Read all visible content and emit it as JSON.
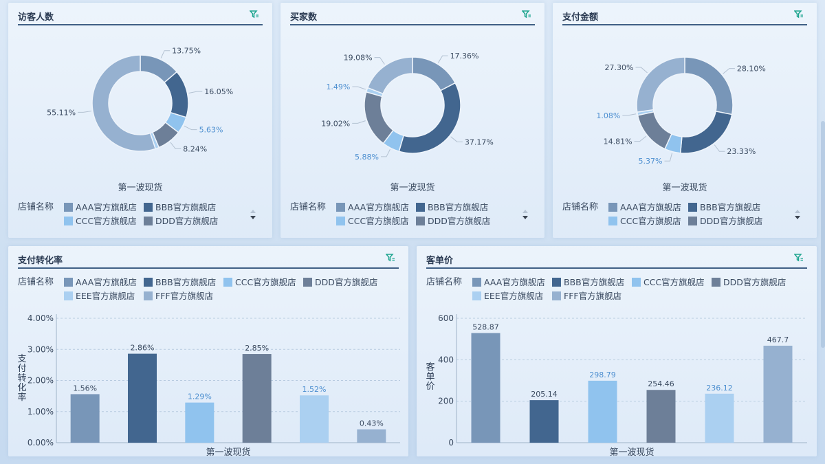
{
  "panels": {
    "visitors": {
      "title": "访客人数"
    },
    "buyers": {
      "title": "买家数"
    },
    "payment": {
      "title": "支付金额"
    },
    "conversion": {
      "title": "支付转化率"
    },
    "unit_price": {
      "title": "客单价"
    }
  },
  "legend_title": "店铺名称",
  "colors": {
    "AAA官方旗舰店": "#7896b8",
    "BBB官方旗舰店": "#42668f",
    "CCC官方旗舰店": "#90c3ee",
    "DDD官方旗舰店": "#6d7f98",
    "EEE官方旗舰店": "#abd0f1",
    "FFF官方旗舰店": "#96b1d0"
  },
  "chart_data": [
    {
      "type": "pie",
      "panel": "visitors",
      "category_label": "第一波现货",
      "labels": [
        "AAA官方旗舰店",
        "BBB官方旗舰店",
        "CCC官方旗舰店",
        "DDD官方旗舰店",
        "EEE官方旗舰店",
        "FFF官方旗舰店"
      ],
      "values": [
        13.75,
        16.05,
        5.63,
        8.24,
        1.22,
        55.11
      ],
      "value_labels": [
        "13.75%",
        "16.05%",
        "5.63%",
        "8.24%",
        "",
        "55.11%"
      ],
      "legend": [
        "AAA官方旗舰店",
        "BBB官方旗舰店",
        "CCC官方旗舰店",
        "DDD官方旗舰店"
      ]
    },
    {
      "type": "pie",
      "panel": "buyers",
      "category_label": "第一波现货",
      "labels": [
        "AAA官方旗舰店",
        "BBB官方旗舰店",
        "CCC官方旗舰店",
        "DDD官方旗舰店",
        "EEE官方旗舰店",
        "FFF官方旗舰店"
      ],
      "values": [
        17.36,
        37.17,
        5.88,
        19.02,
        1.49,
        19.08
      ],
      "value_labels": [
        "17.36%",
        "37.17%",
        "5.88%",
        "19.02%",
        "1.49%",
        "19.08%"
      ],
      "legend": [
        "AAA官方旗舰店",
        "BBB官方旗舰店",
        "CCC官方旗舰店",
        "DDD官方旗舰店"
      ]
    },
    {
      "type": "pie",
      "panel": "payment",
      "category_label": "第一波现货",
      "labels": [
        "AAA官方旗舰店",
        "BBB官方旗舰店",
        "CCC官方旗舰店",
        "DDD官方旗舰店",
        "EEE官方旗舰店",
        "FFF官方旗舰店"
      ],
      "values": [
        28.1,
        23.33,
        5.37,
        14.81,
        1.08,
        27.3
      ],
      "value_labels": [
        "28.10%",
        "23.33%",
        "5.37%",
        "14.81%",
        "1.08%",
        "27.30%"
      ],
      "legend": [
        "AAA官方旗舰店",
        "BBB官方旗舰店",
        "CCC官方旗舰店",
        "DDD官方旗舰店"
      ]
    },
    {
      "type": "bar",
      "panel": "conversion",
      "category_label": "第一波现货",
      "ylabel": "支付转化率",
      "yticks": [
        "0.00%",
        "1.00%",
        "2.00%",
        "3.00%",
        "4.00%"
      ],
      "ylim": [
        0,
        4
      ],
      "series": [
        {
          "name": "AAA官方旗舰店",
          "value": 1.56,
          "label": "1.56%"
        },
        {
          "name": "BBB官方旗舰店",
          "value": 2.86,
          "label": "2.86%"
        },
        {
          "name": "CCC官方旗舰店",
          "value": 1.29,
          "label": "1.29%"
        },
        {
          "name": "DDD官方旗舰店",
          "value": 2.85,
          "label": "2.85%"
        },
        {
          "name": "EEE官方旗舰店",
          "value": 1.52,
          "label": "1.52%"
        },
        {
          "name": "FFF官方旗舰店",
          "value": 0.43,
          "label": "0.43%"
        }
      ]
    },
    {
      "type": "bar",
      "panel": "unit_price",
      "category_label": "第一波现货",
      "ylabel": "客单价",
      "yticks": [
        "0",
        "200",
        "400",
        "600"
      ],
      "ylim": [
        0,
        600
      ],
      "series": [
        {
          "name": "AAA官方旗舰店",
          "value": 528.87,
          "label": "528.87"
        },
        {
          "name": "BBB官方旗舰店",
          "value": 205.14,
          "label": "205.14"
        },
        {
          "name": "CCC官方旗舰店",
          "value": 298.79,
          "label": "298.79"
        },
        {
          "name": "DDD官方旗舰店",
          "value": 254.46,
          "label": "254.46"
        },
        {
          "name": "EEE官方旗舰店",
          "value": 236.12,
          "label": "236.12"
        },
        {
          "name": "FFF官方旗舰店",
          "value": 467.7,
          "label": "467.7"
        }
      ]
    }
  ]
}
